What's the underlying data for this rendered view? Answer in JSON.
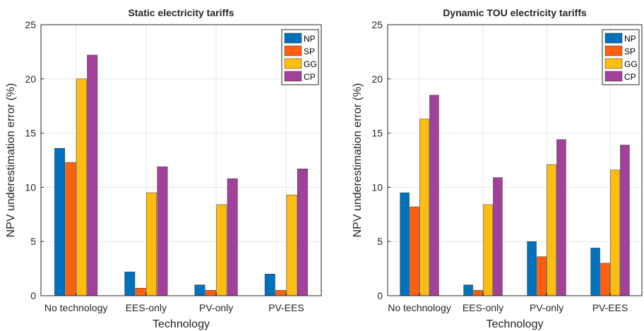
{
  "chart_data": [
    {
      "type": "bar",
      "title": "Static electricity tariffs",
      "xlabel": "Technology",
      "ylabel": "NPV underestimation error (%)",
      "categories": [
        "No technology",
        "EES-only",
        "PV-only",
        "PV-EES"
      ],
      "ylim": [
        0,
        25
      ],
      "yticks": [
        "0",
        "5",
        "10",
        "15",
        "20",
        "25"
      ],
      "grid": true,
      "legend_position": "top-right",
      "series": [
        {
          "name": "NP",
          "color": "#0072BD",
          "values": [
            13.6,
            2.2,
            1.0,
            2.0
          ]
        },
        {
          "name": "SP",
          "color": "#FF5F0F",
          "values": [
            12.3,
            0.7,
            0.5,
            0.5
          ]
        },
        {
          "name": "GG",
          "color": "#FFBD11",
          "values": [
            20.0,
            9.5,
            8.4,
            9.3
          ]
        },
        {
          "name": "CP",
          "color": "#A2419A",
          "values": [
            22.2,
            11.9,
            10.8,
            11.7
          ]
        }
      ]
    },
    {
      "type": "bar",
      "title": "Dynamic TOU electricity tariffs",
      "xlabel": "Technology",
      "ylabel": "NPV underestimation error (%)",
      "categories": [
        "No technology",
        "EES-only",
        "PV-only",
        "PV-EES"
      ],
      "ylim": [
        0,
        25
      ],
      "yticks": [
        "0",
        "5",
        "10",
        "15",
        "20",
        "25"
      ],
      "grid": true,
      "legend_position": "top-right",
      "series": [
        {
          "name": "NP",
          "color": "#0072BD",
          "values": [
            9.5,
            1.0,
            5.0,
            4.4
          ]
        },
        {
          "name": "SP",
          "color": "#FF5F0F",
          "values": [
            8.2,
            0.5,
            3.6,
            3.0
          ]
        },
        {
          "name": "GG",
          "color": "#FFBD11",
          "values": [
            16.3,
            8.4,
            12.1,
            11.6
          ]
        },
        {
          "name": "CP",
          "color": "#A2419A",
          "values": [
            18.5,
            10.9,
            14.4,
            13.9
          ]
        }
      ]
    }
  ]
}
